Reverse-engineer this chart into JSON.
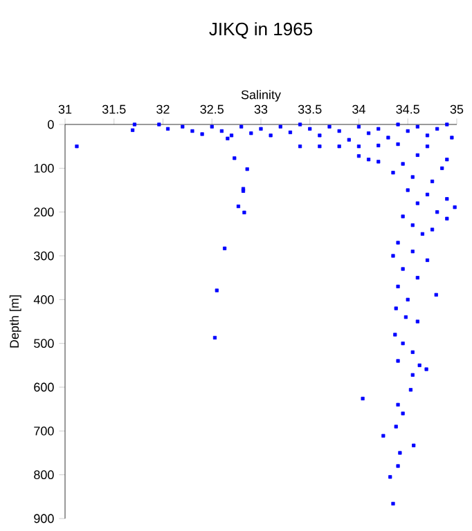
{
  "chart_data": {
    "type": "scatter",
    "title": "JIKQ in 1965",
    "xlabel": "Salinity",
    "ylabel": "Depth [m]",
    "xlim": [
      31,
      35
    ],
    "xticks": [
      31,
      31.5,
      32,
      32.5,
      33,
      33.5,
      34,
      34.5,
      35
    ],
    "ylim": [
      900,
      0
    ],
    "yticks": [
      0,
      100,
      200,
      300,
      400,
      500,
      600,
      700,
      800,
      900
    ],
    "marker": "square",
    "grid": false,
    "series": [
      {
        "color": "#0000ff",
        "x": [
          31.71,
          31.69,
          31.96,
          32.05,
          32.2,
          32.3,
          32.4,
          32.5,
          32.6,
          32.7,
          32.8,
          32.9,
          33.0,
          33.1,
          33.2,
          33.3,
          33.4,
          33.5,
          33.6,
          33.7,
          33.8,
          33.9,
          34.0,
          34.1,
          34.2,
          34.3,
          34.4,
          34.5,
          34.6,
          34.7,
          34.8,
          34.9,
          34.95,
          33.4,
          33.6,
          33.8,
          34.0,
          34.2,
          34.4,
          34.7,
          31.12,
          32.73,
          32.66,
          32.86,
          32.82,
          32.82,
          32.77,
          32.83,
          32.63,
          32.55,
          32.53,
          34.0,
          34.1,
          34.2,
          34.35,
          34.45,
          34.6,
          34.85,
          34.9,
          34.55,
          34.75,
          34.5,
          34.7,
          34.9,
          34.6,
          34.8,
          34.45,
          34.55,
          34.75,
          34.9,
          34.65,
          34.98,
          34.4,
          34.55,
          34.7,
          34.45,
          34.6,
          34.4,
          34.79,
          34.5,
          34.35,
          34.38,
          34.48,
          34.6,
          34.37,
          34.45,
          34.55,
          34.4,
          34.62,
          34.69,
          34.55,
          34.53,
          34.04,
          34.4,
          34.45,
          34.38,
          34.25,
          34.56,
          34.42,
          34.32,
          34.4,
          34.35
        ],
        "values": [
          0,
          13,
          0,
          10,
          5,
          15,
          22,
          5,
          15,
          25,
          5,
          20,
          10,
          25,
          5,
          18,
          0,
          10,
          25,
          5,
          15,
          35,
          5,
          20,
          10,
          30,
          0,
          15,
          5,
          25,
          10,
          0,
          30,
          50,
          50,
          50,
          50,
          48,
          45,
          50,
          50,
          77,
          32,
          102,
          147,
          152,
          187,
          201,
          283,
          379,
          487,
          72,
          80,
          85,
          110,
          90,
          70,
          100,
          80,
          120,
          130,
          150,
          160,
          170,
          180,
          200,
          210,
          230,
          240,
          215,
          250,
          189,
          270,
          290,
          310,
          330,
          350,
          370,
          389,
          400,
          300,
          420,
          440,
          450,
          480,
          500,
          520,
          540,
          550,
          559,
          572,
          606,
          626,
          640,
          660,
          690,
          711,
          733,
          750,
          805,
          780,
          866
        ]
      }
    ]
  }
}
